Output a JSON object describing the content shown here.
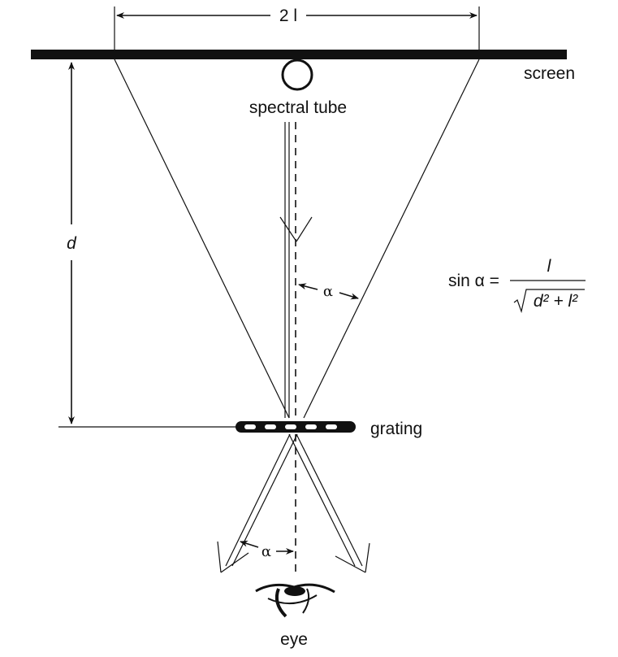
{
  "labels": {
    "width": "2 l",
    "screen": "screen",
    "tube": "spectral tube",
    "distance": "d",
    "grating": "grating",
    "eye": "eye",
    "alpha_upper": "α",
    "alpha_lower": "α"
  },
  "formula": {
    "lhs": "sin α =",
    "numerator": "l",
    "denominator": "d² + l²"
  }
}
